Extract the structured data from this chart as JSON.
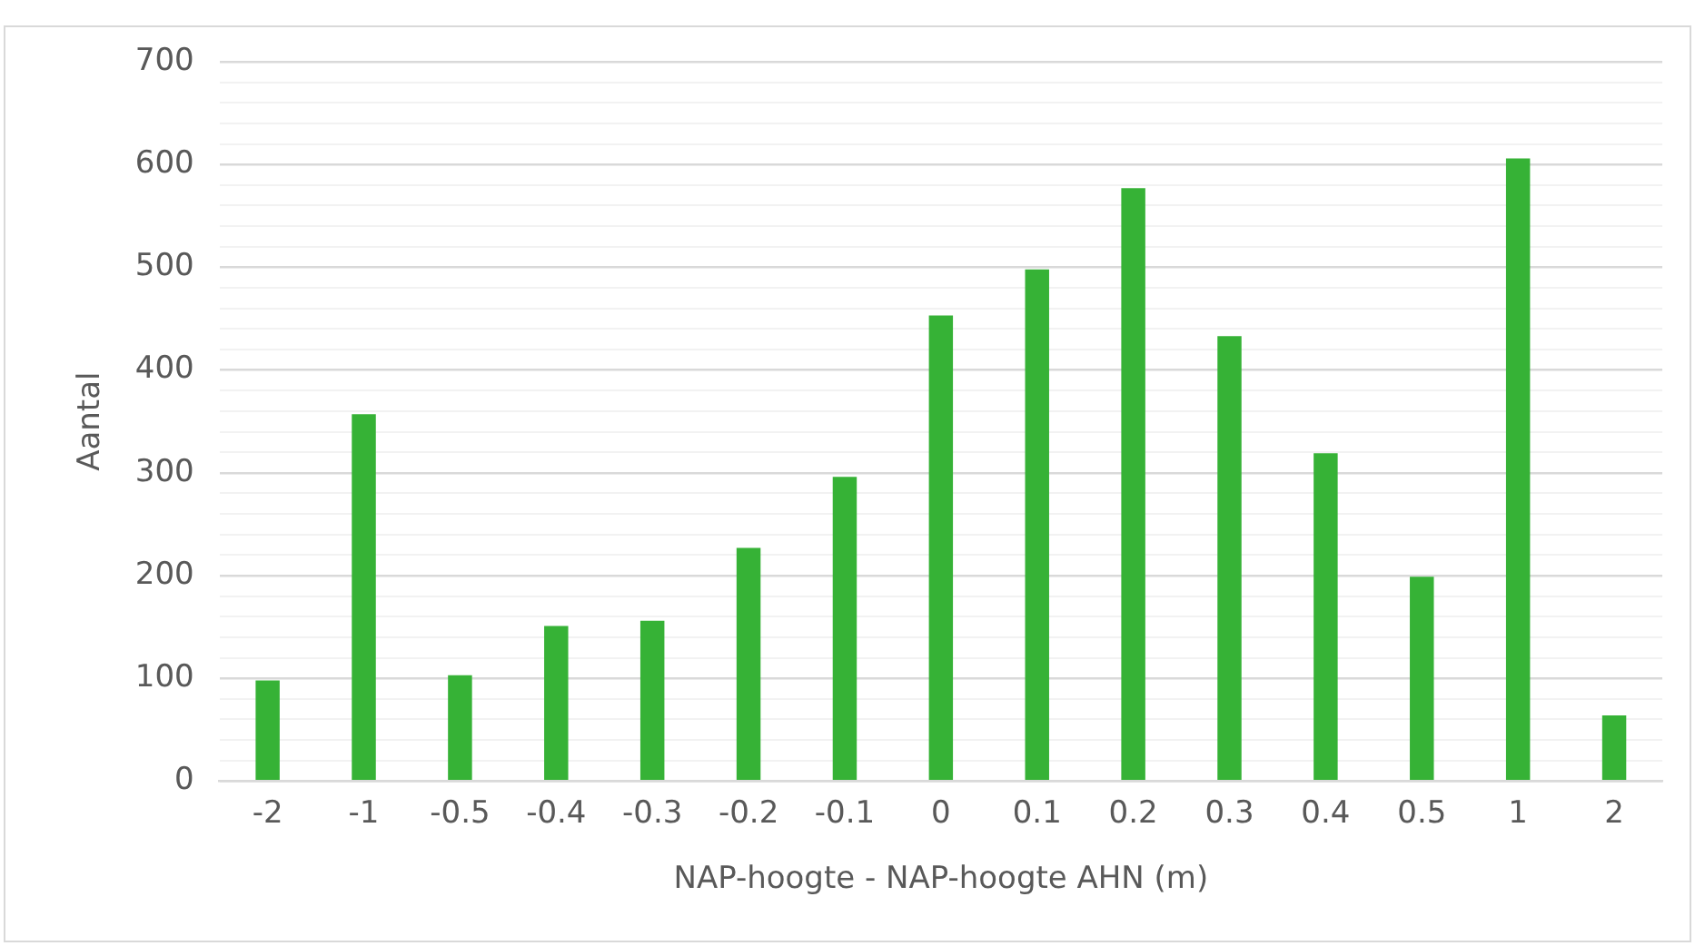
{
  "chart_data": {
    "type": "bar",
    "xlabel": "NAP-hoogte - NAP-hoogte AHN (m)",
    "ylabel": "Aantal",
    "categories": [
      "-2",
      "-1",
      "-0.5",
      "-0.4",
      "-0.3",
      "-0.2",
      "-0.1",
      "0",
      "0.1",
      "0.2",
      "0.3",
      "0.4",
      "0.5",
      "1",
      "2"
    ],
    "values": [
      98,
      357,
      103,
      151,
      156,
      227,
      296,
      453,
      498,
      577,
      433,
      319,
      199,
      606,
      64
    ],
    "color": "#36b236",
    "ylim": [
      0,
      700
    ],
    "yticks": [
      0,
      {
        "value": 20,
        "label": null
      },
      {
        "value": 40,
        "label": null
      },
      {
        "value": 60,
        "label": null
      },
      {
        "value": 80,
        "label": null
      },
      100,
      {
        "value": 120,
        "label": null
      },
      {
        "value": 140,
        "label": null
      },
      {
        "value": 160,
        "label": null
      },
      {
        "value": 180,
        "label": null
      },
      200,
      {
        "value": 220,
        "label": null
      },
      {
        "value": 240,
        "label": null
      },
      {
        "value": 260,
        "label": null
      },
      {
        "value": 280,
        "label": null
      },
      300,
      {
        "value": 320,
        "label": null
      },
      {
        "value": 340,
        "label": null
      },
      {
        "value": 360,
        "label": null
      },
      {
        "value": 380,
        "label": null
      },
      400,
      {
        "value": 420,
        "label": null
      },
      {
        "value": 440,
        "label": null
      },
      {
        "value": 460,
        "label": null
      },
      {
        "value": 480,
        "label": null
      },
      500,
      {
        "value": 520,
        "label": null
      },
      {
        "value": 540,
        "label": null
      },
      {
        "value": 560,
        "label": null
      },
      {
        "value": 580,
        "label": null
      },
      600,
      {
        "value": 620,
        "label": null
      },
      {
        "value": 640,
        "label": null
      },
      {
        "value": 660,
        "label": null
      },
      {
        "value": 680,
        "label": null
      },
      700
    ],
    "grid": "y",
    "legend": false
  }
}
